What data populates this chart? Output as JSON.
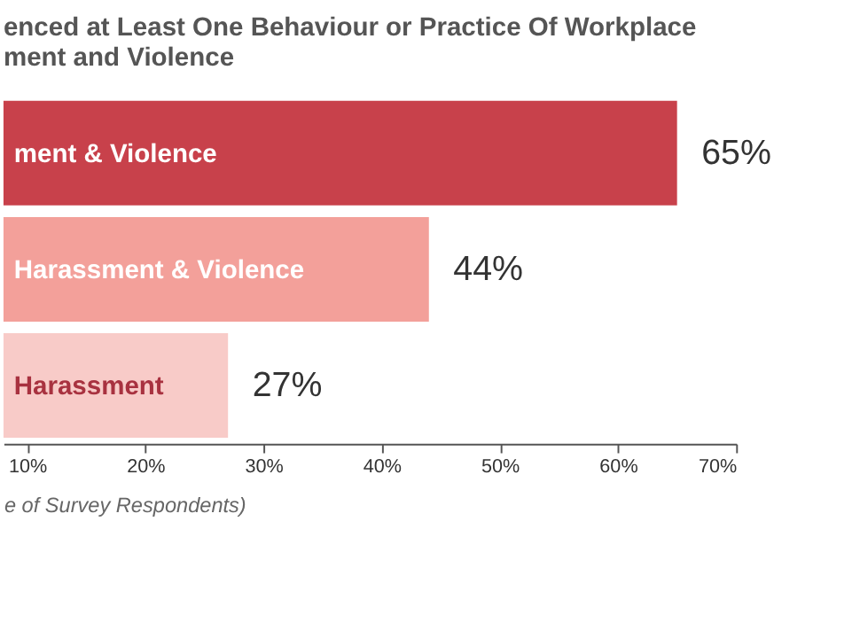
{
  "chart_data": {
    "type": "bar",
    "orientation": "horizontal",
    "title": [
      "enced at Least One Behaviour or Practice Of Workplace",
      "ment and Violence"
    ],
    "xlabel": "e of Survey Respondents)",
    "categories": [
      "ment & Violence",
      "Harassment & Violence",
      "Harassment"
    ],
    "values": [
      65,
      44,
      27
    ],
    "colors": [
      "#c8414b",
      "#f3a09a",
      "#f8cbc8"
    ],
    "value_labels": [
      "65%",
      "44%",
      "27%"
    ],
    "xlim": [
      8,
      70
    ],
    "xticks": [
      {
        "value": 10,
        "label": "10%"
      },
      {
        "value": 20,
        "label": "20%"
      },
      {
        "value": 30,
        "label": "30%"
      },
      {
        "value": 40,
        "label": "40%"
      },
      {
        "value": 50,
        "label": "50%"
      },
      {
        "value": 60,
        "label": "60%"
      },
      {
        "value": 70,
        "label": "70%"
      }
    ],
    "grid": false
  }
}
